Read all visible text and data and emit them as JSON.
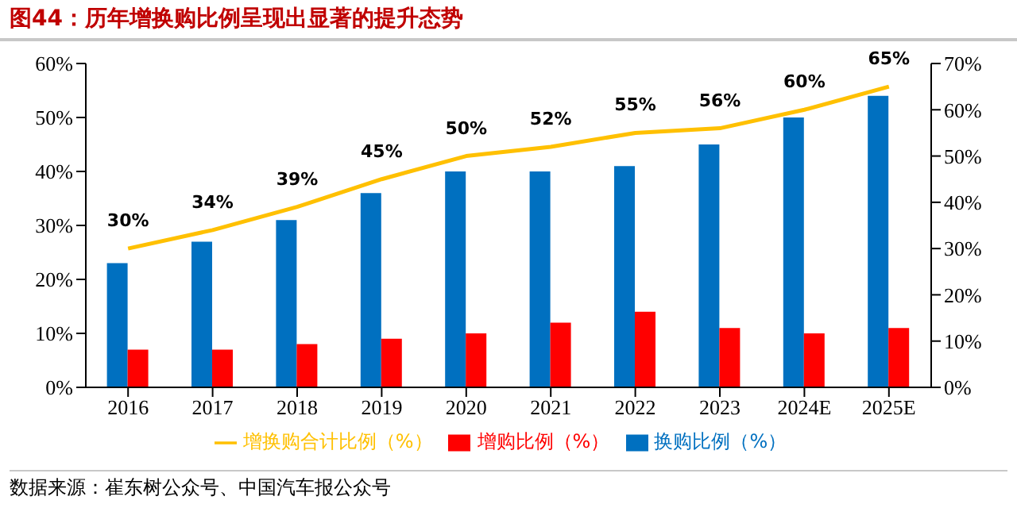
{
  "chart_data": {
    "type": "bar",
    "title": "图44：历年增换购比例呈现出显著的提升态势",
    "categories": [
      "2016",
      "2017",
      "2018",
      "2019",
      "2020",
      "2021",
      "2022",
      "2023",
      "2024E",
      "2025E"
    ],
    "series": [
      {
        "name": "换购比例（%）",
        "color": "#0070c0",
        "values": [
          23,
          27,
          31,
          36,
          40,
          40,
          41,
          45,
          50,
          54
        ]
      },
      {
        "name": "增购比例（%）",
        "color": "#ff0000",
        "values": [
          7,
          7,
          8,
          9,
          10,
          12,
          14,
          11,
          10,
          11
        ]
      },
      {
        "name": "增换购合计比例（%）",
        "type": "line",
        "axis": "y2",
        "color": "#ffc000",
        "values": [
          30,
          34,
          39,
          45,
          50,
          52,
          55,
          56,
          60,
          65
        ],
        "value_labels": [
          "30%",
          "34%",
          "39%",
          "45%",
          "50%",
          "52%",
          "55%",
          "56%",
          "60%",
          "65%"
        ]
      }
    ],
    "ylim": [
      0,
      60
    ],
    "yticks": [
      {
        "value": 0,
        "label": "0%"
      },
      {
        "value": 10,
        "label": "10%"
      },
      {
        "value": 20,
        "label": "20%"
      },
      {
        "value": 30,
        "label": "30%"
      },
      {
        "value": 40,
        "label": "40%"
      },
      {
        "value": 50,
        "label": "50%"
      },
      {
        "value": 60,
        "label": "60%"
      }
    ],
    "y2lim": [
      0,
      70
    ],
    "y2ticks": [
      {
        "value": 0,
        "label": "0%"
      },
      {
        "value": 10,
        "label": "10%"
      },
      {
        "value": 20,
        "label": "20%"
      },
      {
        "value": 30,
        "label": "30%"
      },
      {
        "value": 40,
        "label": "40%"
      },
      {
        "value": 50,
        "label": "50%"
      },
      {
        "value": 60,
        "label": "60%"
      },
      {
        "value": 70,
        "label": "70%"
      }
    ],
    "grid": false,
    "legend": "bottom",
    "marker": "none",
    "annotations": [
      "数据来源：崔东树公众号、中国汽车报公众号"
    ]
  }
}
